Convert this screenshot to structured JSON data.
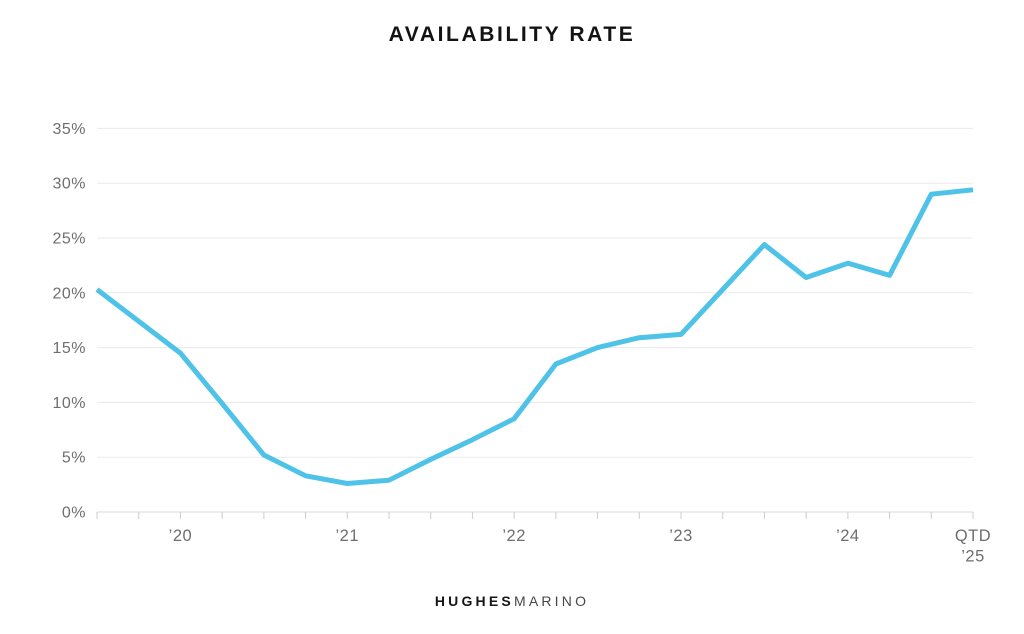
{
  "page": {
    "background": "#FFFFFF"
  },
  "header": {
    "title": "AVAILABILITY RATE"
  },
  "footer": {
    "brand_bold": "HUGHES",
    "brand_light": "MARINO"
  },
  "chart_data": {
    "type": "line",
    "title": "AVAILABILITY RATE",
    "xlabel": "",
    "ylabel": "",
    "unit": "%",
    "ylim": [
      0,
      35
    ],
    "grid": true,
    "legend_position": "none",
    "x_period": "quarterly",
    "y_ticks": [
      0,
      5,
      10,
      15,
      20,
      25,
      30,
      35
    ],
    "series": [
      {
        "name": "Availability Rate",
        "values": [
          20.3,
          17.4,
          14.5,
          9.9,
          5.2,
          3.3,
          2.6,
          2.9,
          4.8,
          6.6,
          8.5,
          13.5,
          15.0,
          15.9,
          16.2,
          20.3,
          24.4,
          21.4,
          22.7,
          21.6,
          29.0,
          29.4
        ]
      }
    ],
    "x_tick_labels": [
      {
        "index": 2,
        "label": "’20"
      },
      {
        "index": 6,
        "label": "’21"
      },
      {
        "index": 10,
        "label": "’22"
      },
      {
        "index": 14,
        "label": "’23"
      },
      {
        "index": 18,
        "label": "’24"
      },
      {
        "index": 21,
        "label": "QTD\n’25"
      }
    ],
    "colors": {
      "line": "#4FC2E8",
      "grid": "#EAEAEA",
      "axis": "#D9D9D9",
      "tick": "#CCCCCC",
      "label": "#6E6E6E",
      "title": "#131313"
    }
  }
}
